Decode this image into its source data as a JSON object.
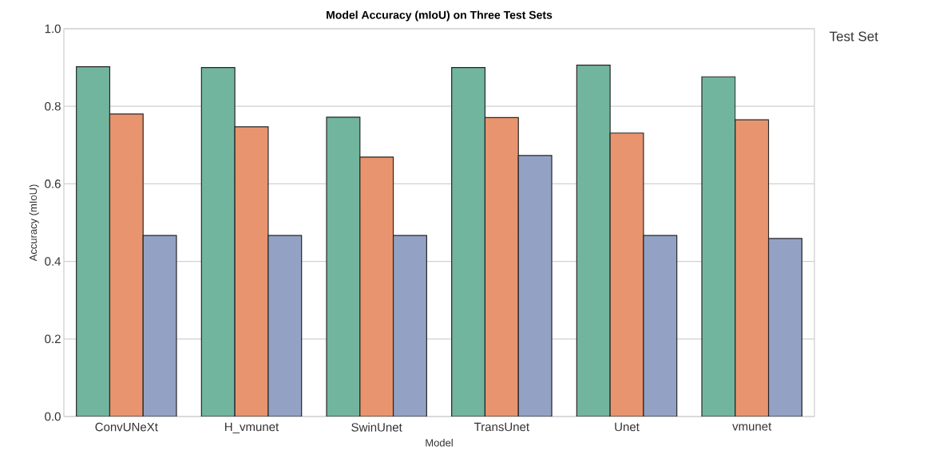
{
  "chart_data": {
    "type": "bar",
    "title": "Model Accuracy (mIoU) on Three Test Sets",
    "xlabel": "Model",
    "ylabel": "Accuracy (mIoU)",
    "legend_title": "Test Set",
    "categories": [
      "ConvUNeXt",
      "H_vmunet",
      "SwinUnet",
      "TransUnet",
      "Unet",
      "vmunet"
    ],
    "series": [
      {
        "color": "#72b59f",
        "values": [
          0.902,
          0.9,
          0.772,
          0.9,
          0.906,
          0.876
        ]
      },
      {
        "color": "#e8956f",
        "values": [
          0.78,
          0.747,
          0.669,
          0.771,
          0.731,
          0.765
        ]
      },
      {
        "color": "#93a2c4",
        "values": [
          0.467,
          0.467,
          0.467,
          0.673,
          0.467,
          0.459
        ]
      }
    ],
    "ylim": [
      0,
      1.0
    ],
    "yticks": [
      {
        "value": 0,
        "label": "0.0"
      },
      0.2,
      0.4,
      0.6,
      0.8,
      {
        "value": 1.0,
        "label": "1.0"
      }
    ],
    "grid": "y"
  }
}
